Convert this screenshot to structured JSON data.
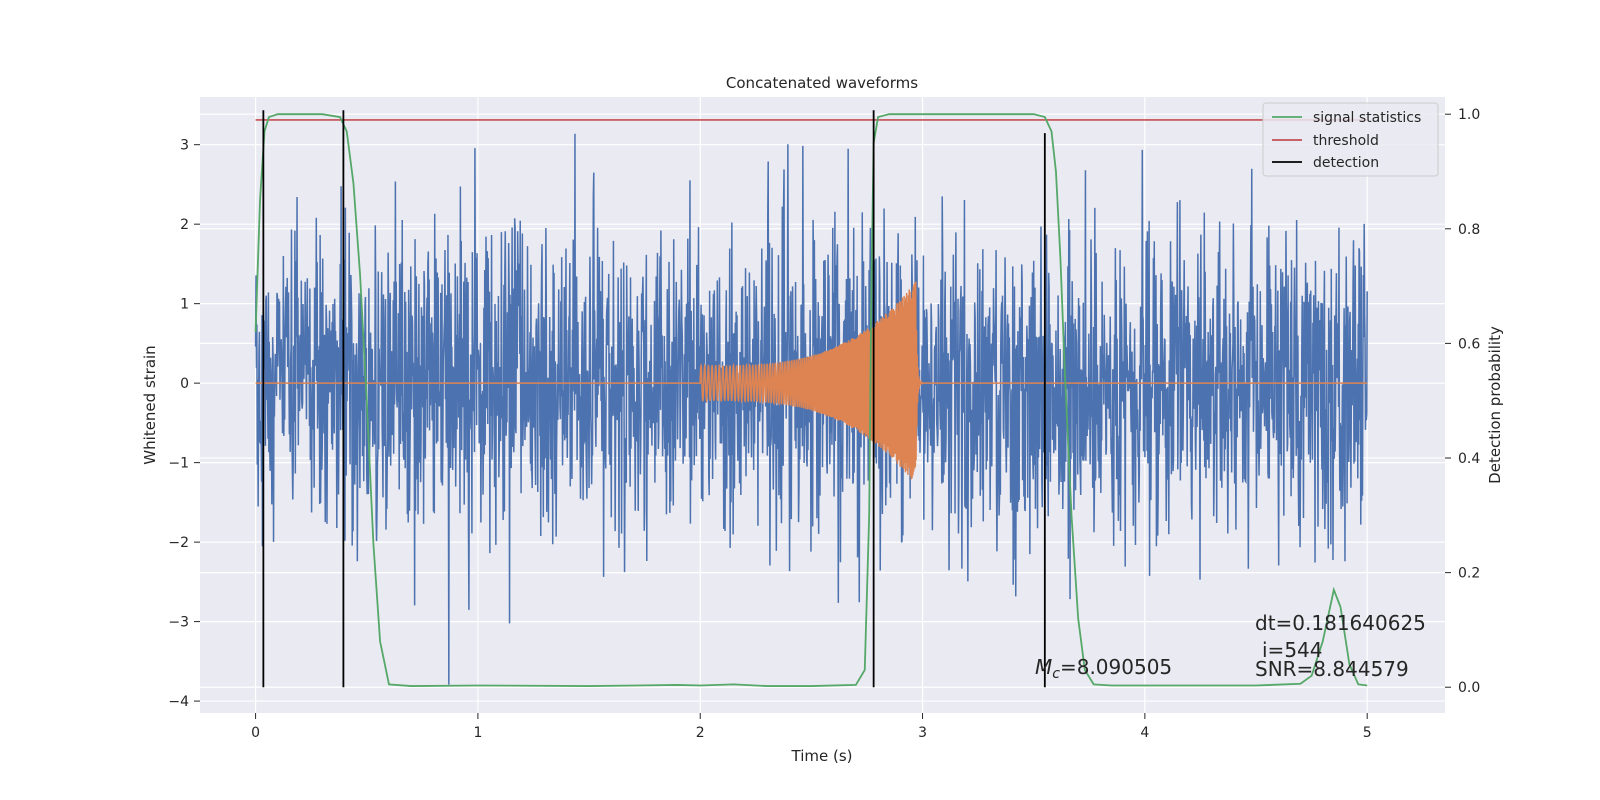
{
  "chart_data": {
    "type": "line",
    "title": "Concatenated waveforms",
    "xlabel": "Time (s)",
    "ylabel": "Whitened strain",
    "ylabel_right": "Detection probability",
    "xlim": [
      -0.25,
      5.35
    ],
    "ylim": [
      -4.15,
      3.6
    ],
    "ylim_right": [
      -0.045,
      1.03
    ],
    "x_ticks": [
      0,
      1,
      2,
      3,
      4,
      5
    ],
    "x_tick_labels": [
      "0",
      "1",
      "2",
      "3",
      "4",
      "5"
    ],
    "y_ticks": [
      -4,
      -3,
      -2,
      -1,
      0,
      1,
      2,
      3
    ],
    "y_tick_labels": [
      "−4",
      "−3",
      "−2",
      "−1",
      "0",
      "1",
      "2",
      "3"
    ],
    "y_right_ticks": [
      0.0,
      0.2,
      0.4,
      0.6,
      0.8,
      1.0
    ],
    "y_right_tick_labels": [
      "0.0",
      "0.2",
      "0.4",
      "0.6",
      "0.8",
      "1.0"
    ],
    "grid": true,
    "legend_position": "top-right",
    "legend": [
      {
        "label": "signal statistics",
        "color": "#55a868"
      },
      {
        "label": "threshold",
        "color": "#c44e52"
      },
      {
        "label": "detection",
        "color": "#000000"
      }
    ],
    "strain_color": "#4c72b0",
    "template_color": "#dd8452",
    "strain_noise_std": 0.95,
    "strain_time_range": [
      0,
      5
    ],
    "template_chirp": {
      "start": 2.0,
      "merger": 2.97,
      "end": 3.0,
      "amp_start": 0.22,
      "amp_peak": 1.28
    },
    "signal_statistics": {
      "x": [
        0,
        0.02,
        0.04,
        0.06,
        0.1,
        0.2,
        0.3,
        0.38,
        0.41,
        0.44,
        0.47,
        0.5,
        0.53,
        0.56,
        0.6,
        0.7,
        1.0,
        1.5,
        1.9,
        2.0,
        2.15,
        2.3,
        2.5,
        2.7,
        2.74,
        2.76,
        2.77,
        2.78,
        2.8,
        2.85,
        3.0,
        3.5,
        3.55,
        3.58,
        3.6,
        3.62,
        3.64,
        3.67,
        3.7,
        3.73,
        3.77,
        3.85,
        4.0,
        4.5,
        4.7,
        4.75,
        4.8,
        4.85,
        4.88,
        4.92,
        4.96,
        5.0
      ],
      "y": [
        0.62,
        0.85,
        0.97,
        0.995,
        1.0,
        1.0,
        1.0,
        0.995,
        0.97,
        0.88,
        0.72,
        0.5,
        0.25,
        0.08,
        0.005,
        0.002,
        0.003,
        0.002,
        0.004,
        0.003,
        0.005,
        0.002,
        0.002,
        0.004,
        0.03,
        0.3,
        0.7,
        0.95,
        0.995,
        1.0,
        1.0,
        1.0,
        0.995,
        0.97,
        0.9,
        0.75,
        0.55,
        0.3,
        0.12,
        0.03,
        0.005,
        0.003,
        0.003,
        0.003,
        0.006,
        0.02,
        0.08,
        0.17,
        0.14,
        0.04,
        0.005,
        0.003
      ]
    },
    "threshold": {
      "value": 0.99,
      "x_range": [
        0,
        5
      ]
    },
    "detections": [
      {
        "x": 0.035,
        "y_top": 1.0
      },
      {
        "x": 0.395,
        "y_top": 1.0
      },
      {
        "x": 2.78,
        "y_top": 1.0
      },
      {
        "x": 3.55,
        "y_top": 0.96
      }
    ],
    "annotations": {
      "mc": {
        "symbol": "M",
        "subscript": "c",
        "text": "=8.090505"
      },
      "dt": "dt=0.181640625",
      "i": "i=544",
      "snr": "SNR=8.844579"
    }
  }
}
